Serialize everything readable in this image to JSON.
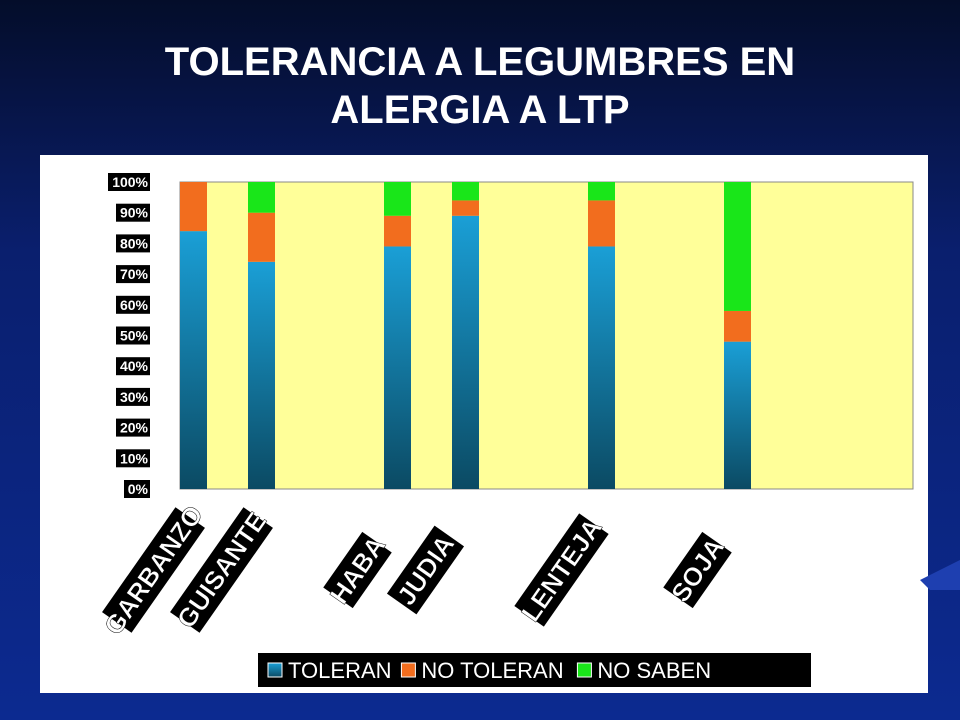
{
  "title_lines": [
    "TOLERANCIA A LEGUMBRES EN",
    "ALERGIA A LTP"
  ],
  "chart_data": {
    "type": "bar",
    "stacked": true,
    "categories": [
      "GARBANZO",
      "GUISANTE",
      "HABA",
      "JUDIA",
      "LENTEJA",
      "SOJA"
    ],
    "series": [
      {
        "name": "TOLERAN",
        "values": [
          84,
          74,
          79,
          89,
          79,
          48
        ],
        "color": "#1a9fd6"
      },
      {
        "name": "NO TOLERAN",
        "values": [
          16,
          16,
          10,
          5,
          15,
          10
        ],
        "color": "#f26d1e"
      },
      {
        "name": "NO SABEN",
        "values": [
          0,
          10,
          11,
          6,
          6,
          42
        ],
        "color": "#19e619"
      }
    ],
    "yticks": [
      "0%",
      "10%",
      "20%",
      "30%",
      "40%",
      "50%",
      "60%",
      "70%",
      "80%",
      "90%",
      "100%"
    ],
    "ylim": [
      0,
      100
    ],
    "plot_background": "#ffff99",
    "legend_position": "bottom"
  }
}
